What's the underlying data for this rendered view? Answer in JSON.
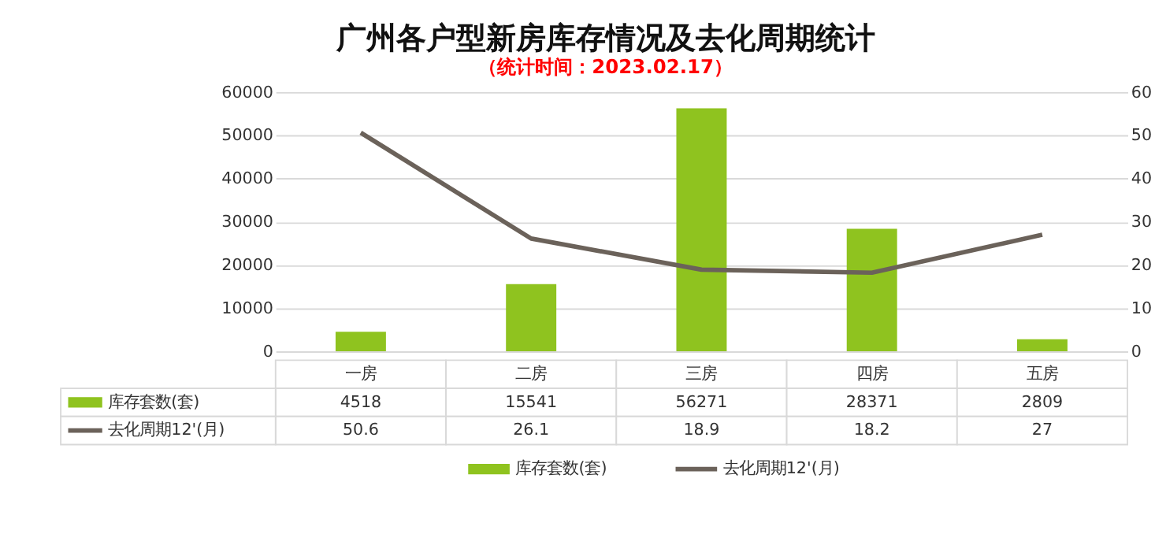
{
  "chart_data": {
    "type": "bar",
    "title": "广州各户型新房库存情况及去化周期统计",
    "subtitle": "（统计时间：2023.02.17）",
    "categories": [
      "一房",
      "二房",
      "三房",
      "四房",
      "五房"
    ],
    "series": [
      {
        "name": "库存套数(套)",
        "color": "#8fc31f",
        "values": [
          4518,
          15541,
          56271,
          28371,
          2809
        ]
      },
      {
        "name": "去化周期12'(月)",
        "type": "line",
        "axis": "y2",
        "color": "#6b625a",
        "values": [
          50.6,
          26.1,
          18.9,
          18.2,
          27
        ]
      }
    ],
    "ylim": [
      0,
      60000
    ],
    "yticks": [
      0,
      10000,
      20000,
      30000,
      40000,
      50000,
      60000
    ],
    "y2lim": [
      0,
      60
    ],
    "y2ticks": [
      0,
      10,
      20,
      30,
      40,
      50,
      60
    ],
    "grid": "y",
    "data_labels": true,
    "legend": "bottom",
    "marker": "none"
  }
}
